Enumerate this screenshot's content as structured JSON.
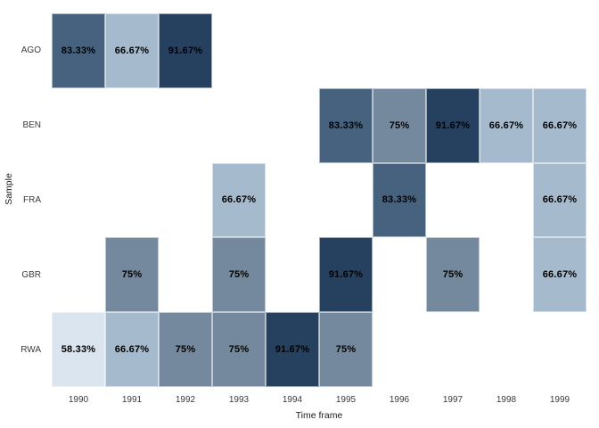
{
  "chart_data": {
    "type": "heatmap",
    "title": "",
    "xlabel": "Time frame",
    "ylabel": "Sample",
    "x_categories": [
      "1990",
      "1991",
      "1992",
      "1993",
      "1994",
      "1995",
      "1996",
      "1997",
      "1998",
      "1999"
    ],
    "y_categories": [
      "AGO",
      "BEN",
      "FRA",
      "GBR",
      "RWA"
    ],
    "cells": [
      {
        "row": "AGO",
        "col": "1990",
        "value": 83.33,
        "label": "83.33%"
      },
      {
        "row": "AGO",
        "col": "1991",
        "value": 66.67,
        "label": "66.67%"
      },
      {
        "row": "AGO",
        "col": "1992",
        "value": 91.67,
        "label": "91.67%"
      },
      {
        "row": "BEN",
        "col": "1995",
        "value": 83.33,
        "label": "83.33%"
      },
      {
        "row": "BEN",
        "col": "1996",
        "value": 75,
        "label": "75%"
      },
      {
        "row": "BEN",
        "col": "1997",
        "value": 91.67,
        "label": "91.67%"
      },
      {
        "row": "BEN",
        "col": "1998",
        "value": 66.67,
        "label": "66.67%"
      },
      {
        "row": "BEN",
        "col": "1999",
        "value": 66.67,
        "label": "66.67%"
      },
      {
        "row": "FRA",
        "col": "1993",
        "value": 66.67,
        "label": "66.67%"
      },
      {
        "row": "FRA",
        "col": "1996",
        "value": 83.33,
        "label": "83.33%"
      },
      {
        "row": "FRA",
        "col": "1999",
        "value": 66.67,
        "label": "66.67%"
      },
      {
        "row": "GBR",
        "col": "1991",
        "value": 75,
        "label": "75%"
      },
      {
        "row": "GBR",
        "col": "1993",
        "value": 75,
        "label": "75%"
      },
      {
        "row": "GBR",
        "col": "1995",
        "value": 91.67,
        "label": "91.67%"
      },
      {
        "row": "GBR",
        "col": "1997",
        "value": 75,
        "label": "75%"
      },
      {
        "row": "GBR",
        "col": "1999",
        "value": 66.67,
        "label": "66.67%"
      },
      {
        "row": "RWA",
        "col": "1990",
        "value": 58.33,
        "label": "58.33%"
      },
      {
        "row": "RWA",
        "col": "1991",
        "value": 66.67,
        "label": "66.67%"
      },
      {
        "row": "RWA",
        "col": "1992",
        "value": 75,
        "label": "75%"
      },
      {
        "row": "RWA",
        "col": "1993",
        "value": 75,
        "label": "75%"
      },
      {
        "row": "RWA",
        "col": "1994",
        "value": 91.67,
        "label": "91.67%"
      },
      {
        "row": "RWA",
        "col": "1995",
        "value": 75,
        "label": "75%"
      }
    ],
    "value_colors": {
      "58.33": "#dae5ef",
      "66.67": "#a5bbcd",
      "75": "#74899d",
      "83.33": "#46627f",
      "91.67": "#26415f"
    },
    "background_color": "#ffffff",
    "grid": false,
    "legend_position": "none"
  }
}
